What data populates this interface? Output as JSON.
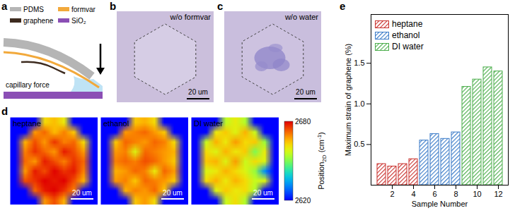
{
  "panels": {
    "a": {
      "label": "a",
      "legend": [
        {
          "name": "PDMS",
          "color": "#b5b5b5"
        },
        {
          "name": "formvar",
          "color": "#f2a93b"
        },
        {
          "name": "graphene",
          "color": "#3d2b1f"
        },
        {
          "name": "SiO₂",
          "color": "#8b4fb5"
        }
      ],
      "annotation": "capillary force"
    },
    "b": {
      "label": "b",
      "title": "w/o formvar",
      "scale_bar": "20 um"
    },
    "c": {
      "label": "c",
      "title": "w/o water",
      "scale_bar": "20 um"
    },
    "d": {
      "label": "d",
      "scale_bar": "20 um",
      "colorbar": {
        "label": [
          "Position",
          "2D",
          " (cm",
          "-1",
          ")"
        ],
        "range": [
          2620,
          2680
        ],
        "ticks": [
          2620,
          2680
        ]
      },
      "maps": [
        {
          "name": "heptane",
          "values": [
            [
              2620,
              2620,
              2620,
              2662,
              2665,
              2660,
              2620,
              2620,
              2620
            ],
            [
              2620,
              2620,
              2668,
              2672,
              2665,
              2670,
              2664,
              2620,
              2620
            ],
            [
              2620,
              2666,
              2674,
              2668,
              2676,
              2670,
              2672,
              2662,
              2620
            ],
            [
              2620,
              2670,
              2676,
              2672,
              2668,
              2678,
              2674,
              2668,
              2620
            ],
            [
              2620,
              2672,
              2668,
              2678,
              2674,
              2670,
              2676,
              2672,
              2620
            ],
            [
              2620,
              2668,
              2678,
              2674,
              2680,
              2676,
              2678,
              2670,
              2620
            ],
            [
              2620,
              2674,
              2676,
              2680,
              2678,
              2680,
              2674,
              2666,
              2620
            ],
            [
              2620,
              2620,
              2672,
              2678,
              2680,
              2676,
              2670,
              2620,
              2620
            ],
            [
              2620,
              2620,
              2620,
              2668,
              2674,
              2666,
              2620,
              2620,
              2620
            ]
          ]
        },
        {
          "name": "ethanol",
          "values": [
            [
              2620,
              2620,
              2620,
              2664,
              2666,
              2662,
              2620,
              2620,
              2620
            ],
            [
              2620,
              2620,
              2668,
              2670,
              2672,
              2668,
              2664,
              2620,
              2620
            ],
            [
              2620,
              2664,
              2672,
              2670,
              2668,
              2672,
              2670,
              2662,
              2620
            ],
            [
              2620,
              2668,
              2670,
              2658,
              2672,
              2670,
              2668,
              2666,
              2620
            ],
            [
              2620,
              2670,
              2672,
              2670,
              2674,
              2672,
              2668,
              2664,
              2620
            ],
            [
              2620,
              2666,
              2668,
              2672,
              2670,
              2660,
              2672,
              2668,
              2620
            ],
            [
              2620,
              2668,
              2670,
              2664,
              2672,
              2670,
              2668,
              2664,
              2620
            ],
            [
              2620,
              2620,
              2666,
              2670,
              2668,
              2672,
              2664,
              2620,
              2620
            ],
            [
              2620,
              2620,
              2620,
              2664,
              2668,
              2662,
              2620,
              2620,
              2620
            ]
          ]
        },
        {
          "name": "DI water",
          "values": [
            [
              2620,
              2620,
              2620,
              2655,
              2660,
              2654,
              2620,
              2620,
              2620
            ],
            [
              2620,
              2620,
              2660,
              2664,
              2658,
              2666,
              2656,
              2620,
              2620
            ],
            [
              2620,
              2656,
              2666,
              2660,
              2668,
              2662,
              2664,
              2652,
              2620
            ],
            [
              2620,
              2662,
              2658,
              2666,
              2660,
              2664,
              2650,
              2660,
              2620
            ],
            [
              2620,
              2664,
              2666,
              2658,
              2668,
              2656,
              2662,
              2658,
              2620
            ],
            [
              2620,
              2658,
              2660,
              2666,
              2662,
              2658,
              2652,
              2632,
              2620
            ],
            [
              2620,
              2662,
              2666,
              2660,
              2666,
              2662,
              2656,
              2658,
              2620
            ],
            [
              2620,
              2620,
              2658,
              2664,
              2660,
              2662,
              2654,
              2620,
              2620
            ],
            [
              2620,
              2620,
              2620,
              2656,
              2662,
              2654,
              2620,
              2620,
              2620
            ]
          ]
        }
      ]
    },
    "e": {
      "label": "e"
    }
  },
  "chart_data": {
    "type": "bar",
    "xlabel": "Sample Number",
    "ylabel": "Maximum strain of graphene (%)",
    "x": [
      1,
      2,
      3,
      4,
      5,
      6,
      7,
      8,
      9,
      10,
      11,
      12
    ],
    "series": [
      {
        "name": "heptane",
        "color": "#c9302c",
        "values": [
          0.26,
          0.23,
          0.26,
          0.32,
          null,
          null,
          null,
          null,
          null,
          null,
          null,
          null
        ]
      },
      {
        "name": "ethanol",
        "color": "#3a7bc8",
        "values": [
          null,
          null,
          null,
          null,
          0.55,
          0.63,
          0.57,
          0.65,
          null,
          null,
          null,
          null
        ]
      },
      {
        "name": "DI water",
        "color": "#4cae4c",
        "values": [
          null,
          null,
          null,
          null,
          null,
          null,
          null,
          null,
          1.21,
          1.3,
          1.45,
          1.4
        ]
      }
    ],
    "xticks": [
      2,
      4,
      6,
      8,
      10,
      12
    ],
    "ylim": [
      0,
      2.1
    ],
    "yticks": [
      0.5,
      {
        "value": 1,
        "label": "1.0"
      },
      1.5
    ],
    "legend": "top-left"
  }
}
